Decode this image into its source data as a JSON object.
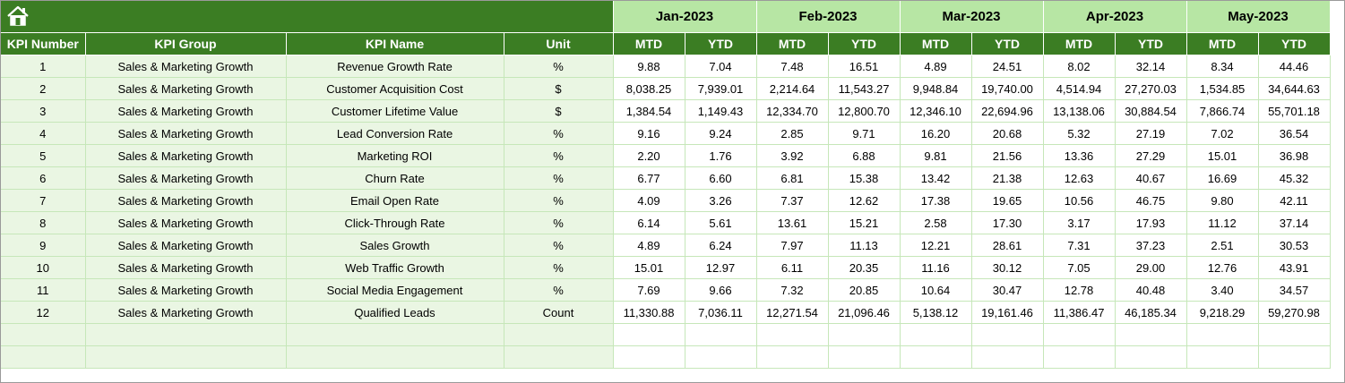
{
  "colors": {
    "dark_green": "#3b7d23",
    "light_green": "#b7e6a4",
    "row_tint": "#eaf6e3",
    "grid": "#c6e7b9"
  },
  "home_icon": "home-icon",
  "months": [
    "Jan-2023",
    "Feb-2023",
    "Mar-2023",
    "Apr-2023",
    "May-2023"
  ],
  "headers": {
    "kpi_number": "KPI Number",
    "kpi_group": "KPI Group",
    "kpi_name": "KPI Name",
    "unit": "Unit",
    "mtd": "MTD",
    "ytd": "YTD"
  },
  "rows": [
    {
      "num": "1",
      "group": "Sales & Marketing Growth",
      "name": "Revenue Growth Rate",
      "unit": "%",
      "vals": [
        "9.88",
        "7.04",
        "7.48",
        "16.51",
        "4.89",
        "24.51",
        "8.02",
        "32.14",
        "8.34",
        "44.46"
      ]
    },
    {
      "num": "2",
      "group": "Sales & Marketing Growth",
      "name": "Customer Acquisition Cost",
      "unit": "$",
      "vals": [
        "8,038.25",
        "7,939.01",
        "2,214.64",
        "11,543.27",
        "9,948.84",
        "19,740.00",
        "4,514.94",
        "27,270.03",
        "1,534.85",
        "34,644.63"
      ]
    },
    {
      "num": "3",
      "group": "Sales & Marketing Growth",
      "name": "Customer Lifetime Value",
      "unit": "$",
      "vals": [
        "1,384.54",
        "1,149.43",
        "12,334.70",
        "12,800.70",
        "12,346.10",
        "22,694.96",
        "13,138.06",
        "30,884.54",
        "7,866.74",
        "55,701.18"
      ]
    },
    {
      "num": "4",
      "group": "Sales & Marketing Growth",
      "name": "Lead Conversion Rate",
      "unit": "%",
      "vals": [
        "9.16",
        "9.24",
        "2.85",
        "9.71",
        "16.20",
        "20.68",
        "5.32",
        "27.19",
        "7.02",
        "36.54"
      ]
    },
    {
      "num": "5",
      "group": "Sales & Marketing Growth",
      "name": "Marketing ROI",
      "unit": "%",
      "vals": [
        "2.20",
        "1.76",
        "3.92",
        "6.88",
        "9.81",
        "21.56",
        "13.36",
        "27.29",
        "15.01",
        "36.98"
      ]
    },
    {
      "num": "6",
      "group": "Sales & Marketing Growth",
      "name": "Churn Rate",
      "unit": "%",
      "vals": [
        "6.77",
        "6.60",
        "6.81",
        "15.38",
        "13.42",
        "21.38",
        "12.63",
        "40.67",
        "16.69",
        "45.32"
      ]
    },
    {
      "num": "7",
      "group": "Sales & Marketing Growth",
      "name": "Email Open Rate",
      "unit": "%",
      "vals": [
        "4.09",
        "3.26",
        "7.37",
        "12.62",
        "17.38",
        "19.65",
        "10.56",
        "46.75",
        "9.80",
        "42.11"
      ]
    },
    {
      "num": "8",
      "group": "Sales & Marketing Growth",
      "name": "Click-Through Rate",
      "unit": "%",
      "vals": [
        "6.14",
        "5.61",
        "13.61",
        "15.21",
        "2.58",
        "17.30",
        "3.17",
        "17.93",
        "11.12",
        "37.14"
      ]
    },
    {
      "num": "9",
      "group": "Sales & Marketing Growth",
      "name": "Sales Growth",
      "unit": "%",
      "vals": [
        "4.89",
        "6.24",
        "7.97",
        "11.13",
        "12.21",
        "28.61",
        "7.31",
        "37.23",
        "2.51",
        "30.53"
      ]
    },
    {
      "num": "10",
      "group": "Sales & Marketing Growth",
      "name": "Web Traffic Growth",
      "unit": "%",
      "vals": [
        "15.01",
        "12.97",
        "6.11",
        "20.35",
        "11.16",
        "30.12",
        "7.05",
        "29.00",
        "12.76",
        "43.91"
      ]
    },
    {
      "num": "11",
      "group": "Sales & Marketing Growth",
      "name": "Social Media Engagement",
      "unit": "%",
      "vals": [
        "7.69",
        "9.66",
        "7.32",
        "20.85",
        "10.64",
        "30.47",
        "12.78",
        "40.48",
        "3.40",
        "34.57"
      ]
    },
    {
      "num": "12",
      "group": "Sales & Marketing Growth",
      "name": "Qualified Leads",
      "unit": "Count",
      "vals": [
        "11,330.88",
        "7,036.11",
        "12,271.54",
        "21,096.46",
        "5,138.12",
        "19,161.46",
        "11,386.47",
        "46,185.34",
        "9,218.29",
        "59,270.98"
      ]
    },
    {
      "num": "",
      "group": "",
      "name": "",
      "unit": "",
      "vals": [
        "",
        "",
        "",
        "",
        "",
        "",
        "",
        "",
        "",
        ""
      ]
    },
    {
      "num": "",
      "group": "",
      "name": "",
      "unit": "",
      "vals": [
        "",
        "",
        "",
        "",
        "",
        "",
        "",
        "",
        "",
        ""
      ]
    }
  ]
}
